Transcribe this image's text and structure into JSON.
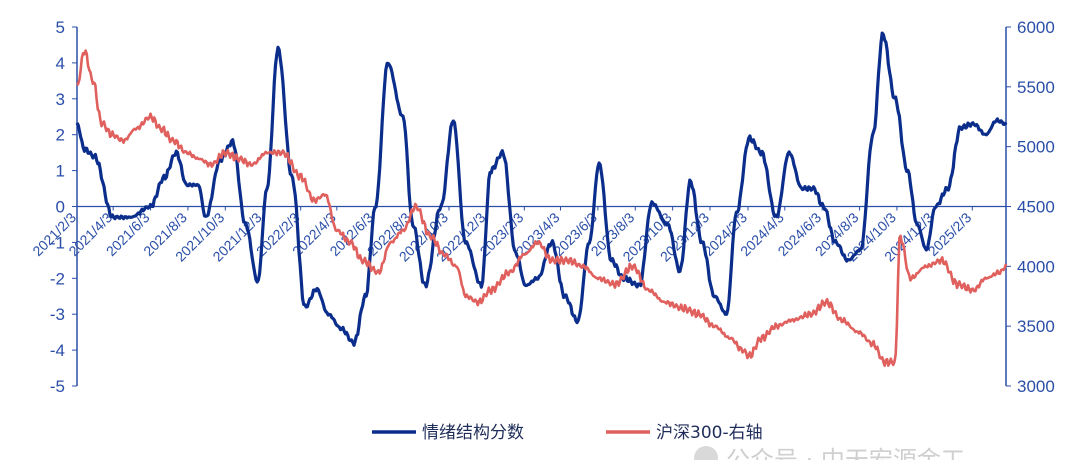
{
  "chart_data": {
    "type": "line",
    "title": "",
    "xlabel": "",
    "ylabel": "",
    "x_tick_labels": [
      "2021/2/3",
      "2021/4/3",
      "2021/6/3",
      "2021/8/3",
      "2021/10/3",
      "2021/12/3",
      "2022/2/3",
      "2022/4/3",
      "2022/6/3",
      "2022/8/3",
      "2022/10/3",
      "2022/12/3",
      "2023/2/3",
      "2023/4/3",
      "2023/6/3",
      "2023/8/3",
      "2023/10/3",
      "2023/12/3",
      "2024/2/3",
      "2024/4/3",
      "2024/6/3",
      "2024/8/3",
      "2024/10/3",
      "2024/12/3",
      "2025/2/3"
    ],
    "left_axis": {
      "min": -5,
      "max": 5,
      "ticks": [
        5,
        4,
        3,
        2,
        1,
        0,
        -1,
        -2,
        -3,
        -4,
        -5
      ]
    },
    "right_axis": {
      "min": 3000,
      "max": 6000,
      "ticks": [
        6000,
        5500,
        5000,
        4500,
        4000,
        3500,
        3000
      ]
    },
    "series": [
      {
        "name": "情绪结构分数",
        "axis": "left",
        "color": "#0b2e8c",
        "x": [
          "2021-02-03",
          "2021-02-15",
          "2021-03-03",
          "2021-04-03",
          "2021-05-01",
          "2021-06-03",
          "2021-06-25",
          "2021-07-15",
          "2021-08-01",
          "2021-08-20",
          "2021-09-01",
          "2021-09-25",
          "2021-10-15",
          "2021-11-05",
          "2021-11-25",
          "2021-12-10",
          "2021-12-28",
          "2022-01-20",
          "2022-02-10",
          "2022-03-01",
          "2022-03-20",
          "2022-04-10",
          "2022-05-01",
          "2022-05-20",
          "2022-06-05",
          "2022-06-25",
          "2022-07-20",
          "2022-08-05",
          "2022-08-25",
          "2022-09-20",
          "2022-10-10",
          "2022-10-30",
          "2022-11-25",
          "2022-12-10",
          "2022-12-30",
          "2023-01-20",
          "2023-02-05",
          "2023-02-25",
          "2023-03-20",
          "2023-04-10",
          "2023-05-01",
          "2023-05-20",
          "2023-06-05",
          "2023-06-25",
          "2023-07-15",
          "2023-08-10",
          "2023-08-30",
          "2023-09-25",
          "2023-10-15",
          "2023-11-01",
          "2023-11-20",
          "2023-12-10",
          "2023-12-30",
          "2024-01-15",
          "2024-02-05",
          "2024-02-25",
          "2024-03-20",
          "2024-04-10",
          "2024-05-01",
          "2024-05-20",
          "2024-06-05",
          "2024-06-25",
          "2024-07-15",
          "2024-08-05",
          "2024-08-25",
          "2024-09-10",
          "2024-09-30",
          "2024-10-20",
          "2024-11-05",
          "2024-11-20",
          "2024-12-05",
          "2024-12-25",
          "2025-01-15",
          "2025-02-05",
          "2025-02-25",
          "2025-03-15",
          "2025-03-30"
        ],
        "values": [
          2.3,
          1.6,
          1.4,
          -0.3,
          -0.3,
          0.0,
          0.8,
          1.5,
          0.6,
          0.6,
          -0.3,
          1.3,
          1.8,
          -0.5,
          -2.1,
          0.5,
          4.4,
          0.8,
          -2.8,
          -2.3,
          -3.0,
          -3.4,
          -3.8,
          -2.5,
          0.0,
          4.0,
          2.5,
          -0.5,
          -2.2,
          0.0,
          2.4,
          -1.0,
          -2.2,
          1.0,
          1.5,
          -1.3,
          -2.2,
          -2.0,
          -1.0,
          -2.5,
          -3.2,
          -1.0,
          1.2,
          -1.5,
          -2.0,
          -2.2,
          0.1,
          -0.5,
          -1.8,
          0.7,
          -1.0,
          -2.5,
          -3.0,
          -0.2,
          1.9,
          1.5,
          -0.3,
          1.5,
          0.5,
          0.5,
          0.0,
          -1.0,
          -1.5,
          -1.2,
          2.0,
          4.8,
          3.0,
          1.0,
          -0.5,
          -1.2,
          0.0,
          0.5,
          2.2,
          2.3,
          2.0,
          2.4,
          2.3
        ]
      },
      {
        "name": "沪深300-右轴",
        "axis": "right",
        "color": "#e0605e",
        "x": [
          "2021-02-03",
          "2021-02-15",
          "2021-03-01",
          "2021-03-15",
          "2021-04-01",
          "2021-04-20",
          "2021-05-10",
          "2021-06-03",
          "2021-06-20",
          "2021-07-10",
          "2021-08-01",
          "2021-08-20",
          "2021-09-10",
          "2021-10-03",
          "2021-10-25",
          "2021-11-15",
          "2021-12-10",
          "2022-01-05",
          "2022-02-03",
          "2022-02-25",
          "2022-03-15",
          "2022-04-03",
          "2022-04-25",
          "2022-05-15",
          "2022-06-10",
          "2022-06-30",
          "2022-07-20",
          "2022-08-10",
          "2022-09-03",
          "2022-09-25",
          "2022-10-15",
          "2022-10-31",
          "2022-11-20",
          "2022-12-10",
          "2023-01-10",
          "2023-02-03",
          "2023-02-25",
          "2023-03-20",
          "2023-04-15",
          "2023-05-10",
          "2023-06-03",
          "2023-07-01",
          "2023-07-30",
          "2023-08-25",
          "2023-09-20",
          "2023-10-20",
          "2023-11-15",
          "2023-12-10",
          "2024-01-05",
          "2024-01-25",
          "2024-02-05",
          "2024-02-25",
          "2024-03-20",
          "2024-04-15",
          "2024-05-15",
          "2024-06-10",
          "2024-07-05",
          "2024-08-01",
          "2024-08-25",
          "2024-09-13",
          "2024-09-30",
          "2024-10-08",
          "2024-10-25",
          "2024-11-20",
          "2024-12-15",
          "2025-01-10",
          "2025-02-05",
          "2025-02-25",
          "2025-03-20",
          "2025-03-30"
        ],
        "values": [
          5500,
          5800,
          5550,
          5200,
          5100,
          5050,
          5150,
          5250,
          5150,
          5050,
          4950,
          4900,
          4850,
          4950,
          4900,
          4850,
          4950,
          4950,
          4750,
          4550,
          4600,
          4300,
          4200,
          4050,
          3950,
          4200,
          4300,
          4500,
          4250,
          4100,
          4000,
          3750,
          3700,
          3800,
          3950,
          4100,
          4200,
          4050,
          4050,
          4000,
          3900,
          3850,
          4000,
          3800,
          3700,
          3650,
          3600,
          3500,
          3400,
          3300,
          3250,
          3400,
          3500,
          3550,
          3600,
          3700,
          3550,
          3450,
          3350,
          3200,
          3200,
          4250,
          3900,
          4000,
          4050,
          3850,
          3800,
          3900,
          3950,
          4000
        ]
      }
    ],
    "legend_position": "bottom",
    "grid": false
  },
  "watermark_text": "公众号 · 中天宏源金工"
}
